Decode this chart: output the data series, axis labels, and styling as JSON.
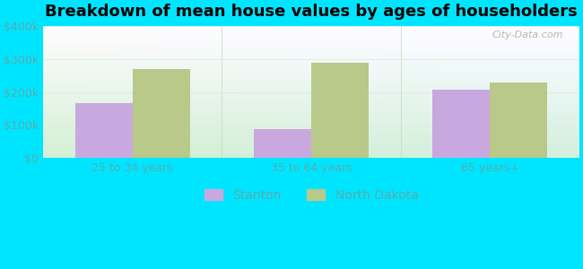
{
  "title": "Breakdown of mean house values by ages of householders",
  "categories": [
    "25 to 34 years",
    "35 to 64 years",
    "65 years+"
  ],
  "stanton_values": [
    165000,
    87000,
    207000
  ],
  "nd_values": [
    270000,
    290000,
    230000
  ],
  "stanton_color": "#c9a8e0",
  "nd_color": "#b8c98a",
  "ylim": [
    0,
    400000
  ],
  "yticks": [
    0,
    100000,
    200000,
    300000,
    400000
  ],
  "ytick_labels": [
    "$0",
    "$100k",
    "$200k",
    "$300k",
    "$400k"
  ],
  "background_outer": "#00e5ff",
  "bar_width": 0.32,
  "legend_stanton": "Stanton",
  "legend_nd": "North Dakota",
  "watermark": "City-Data.com",
  "grid_color": "#e0eee0",
  "title_fontsize": 13,
  "tick_label_color": "#5aacac"
}
